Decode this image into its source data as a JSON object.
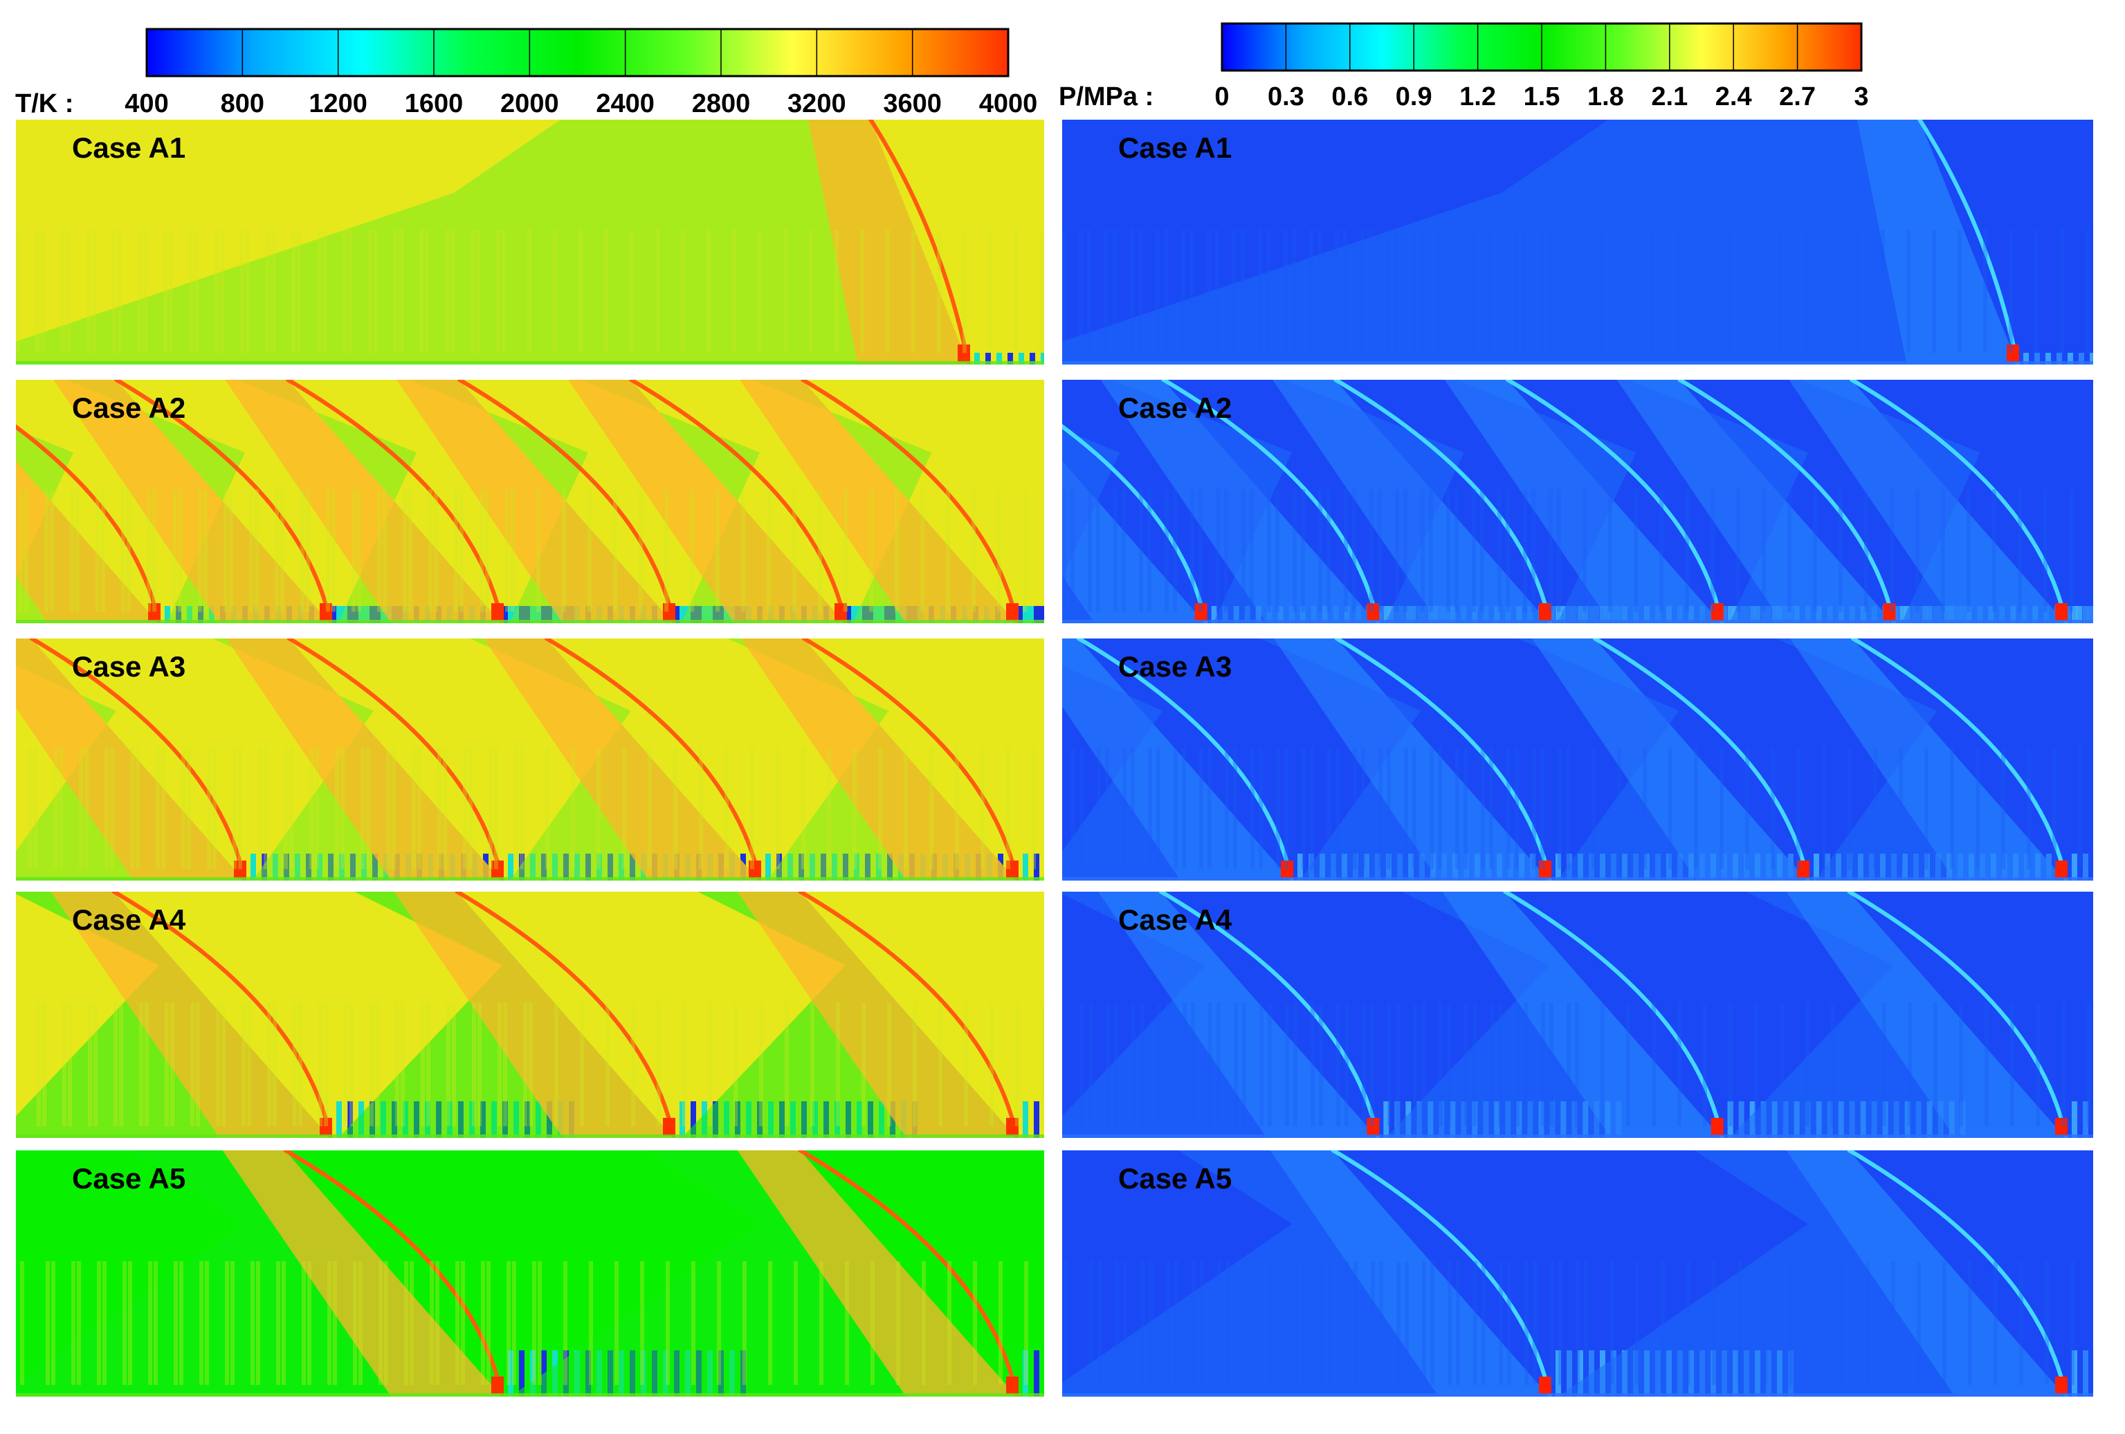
{
  "chart_data": [
    {
      "type": "heatmap",
      "quantity_label": "T/K :",
      "colorbar": {
        "ticks": [
          "400",
          "800",
          "1200",
          "1600",
          "2000",
          "2400",
          "2800",
          "3200",
          "3600",
          "4000"
        ],
        "range": [
          400,
          4000
        ],
        "colormap": [
          "#0000ff",
          "#00a8ff",
          "#00ffff",
          "#00ff44",
          "#00ee00",
          "#60ff20",
          "#ffff40",
          "#ffa500",
          "#ff3000"
        ]
      },
      "panels": [
        {
          "label": "Case A1",
          "detonation_waves": 1
        },
        {
          "label": "Case A2",
          "detonation_waves": 6
        },
        {
          "label": "Case A3",
          "detonation_waves": 4
        },
        {
          "label": "Case A4",
          "detonation_waves": 3
        },
        {
          "label": "Case A5",
          "detonation_waves": 2
        }
      ]
    },
    {
      "type": "heatmap",
      "quantity_label": "P/MPa :",
      "colorbar": {
        "ticks": [
          "0",
          "0.3",
          "0.6",
          "0.9",
          "1.2",
          "1.5",
          "1.8",
          "2.1",
          "2.4",
          "2.7",
          "3"
        ],
        "range": [
          0,
          3
        ],
        "colormap": [
          "#0000ff",
          "#00a8ff",
          "#00ffff",
          "#00ff44",
          "#00ee00",
          "#60ff20",
          "#ffff40",
          "#ffa500",
          "#ff3000"
        ]
      },
      "panels": [
        {
          "label": "Case A1",
          "detonation_waves": 1
        },
        {
          "label": "Case A2",
          "detonation_waves": 6
        },
        {
          "label": "Case A3",
          "detonation_waves": 4
        },
        {
          "label": "Case A4",
          "detonation_waves": 3
        },
        {
          "label": "Case A5",
          "detonation_waves": 2
        }
      ]
    }
  ]
}
